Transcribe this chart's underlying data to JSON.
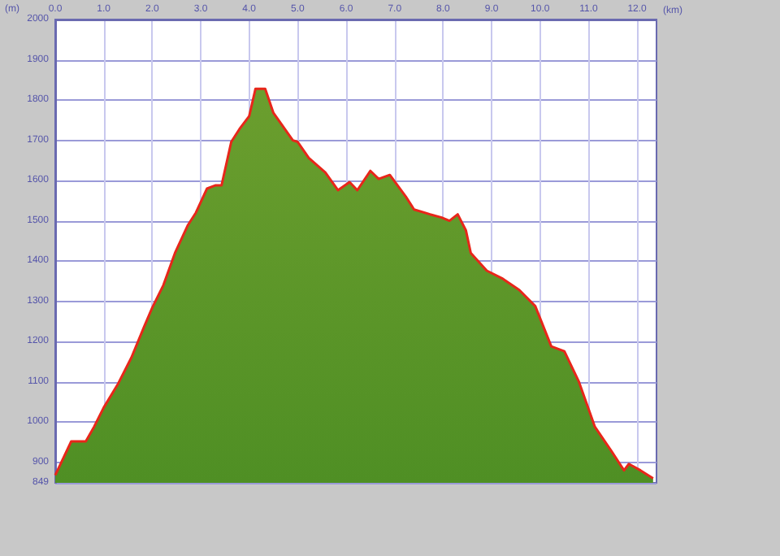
{
  "chart_data": {
    "type": "area",
    "xlabel": "(km)",
    "ylabel": "(m)",
    "x": [
      0,
      0.33,
      0.63,
      0.8,
      1.0,
      1.3,
      1.57,
      1.83,
      2.0,
      2.23,
      2.47,
      2.73,
      2.9,
      3.13,
      3.3,
      3.43,
      3.63,
      3.8,
      4.0,
      4.13,
      4.33,
      4.5,
      4.9,
      5.0,
      5.23,
      5.57,
      5.83,
      6.07,
      6.23,
      6.5,
      6.67,
      6.9,
      7.23,
      7.4,
      7.73,
      7.97,
      8.13,
      8.3,
      8.47,
      8.57,
      8.9,
      9.23,
      9.57,
      9.9,
      10.23,
      10.5,
      10.8,
      11.13,
      11.47,
      11.73,
      11.83,
      12.07,
      12.33
    ],
    "series": [
      {
        "color": "#6b9e2e",
        "values": [
          868,
          952,
          952,
          988,
          1036,
          1096,
          1160,
          1236,
          1284,
          1340,
          1420,
          1488,
          1520,
          1580,
          1588,
          1588,
          1696,
          1728,
          1760,
          1828,
          1828,
          1768,
          1700,
          1696,
          1656,
          1620,
          1576,
          1596,
          1576,
          1624,
          1604,
          1614,
          1560,
          1528,
          1516,
          1508,
          1500,
          1516,
          1476,
          1420,
          1376,
          1356,
          1328,
          1288,
          1188,
          1176,
          1100,
          988,
          928,
          880,
          896,
          880,
          860
        ]
      }
    ],
    "xlim": [
      0,
      12.4
    ],
    "xticks": [
      {
        "value": 0,
        "label": "0.0"
      },
      {
        "value": 1,
        "label": "1.0"
      },
      {
        "value": 2,
        "label": "2.0"
      },
      {
        "value": 3,
        "label": "3.0"
      },
      {
        "value": 4,
        "label": "4.0"
      },
      {
        "value": 5,
        "label": "5.0"
      },
      {
        "value": 6,
        "label": "6.0"
      },
      {
        "value": 7,
        "label": "7.0"
      },
      {
        "value": 8,
        "label": "8.0"
      },
      {
        "value": 9,
        "label": "9.0"
      },
      {
        "value": 10,
        "label": "10.0"
      },
      {
        "value": 11,
        "label": "11.0"
      },
      {
        "value": 12,
        "label": "12.0"
      }
    ],
    "ylim": [
      849,
      2000
    ],
    "yticks": [
      849,
      900,
      1000,
      1100,
      1200,
      1300,
      1400,
      1500,
      1600,
      1700,
      1800,
      1900,
      2000
    ],
    "grid": true
  }
}
